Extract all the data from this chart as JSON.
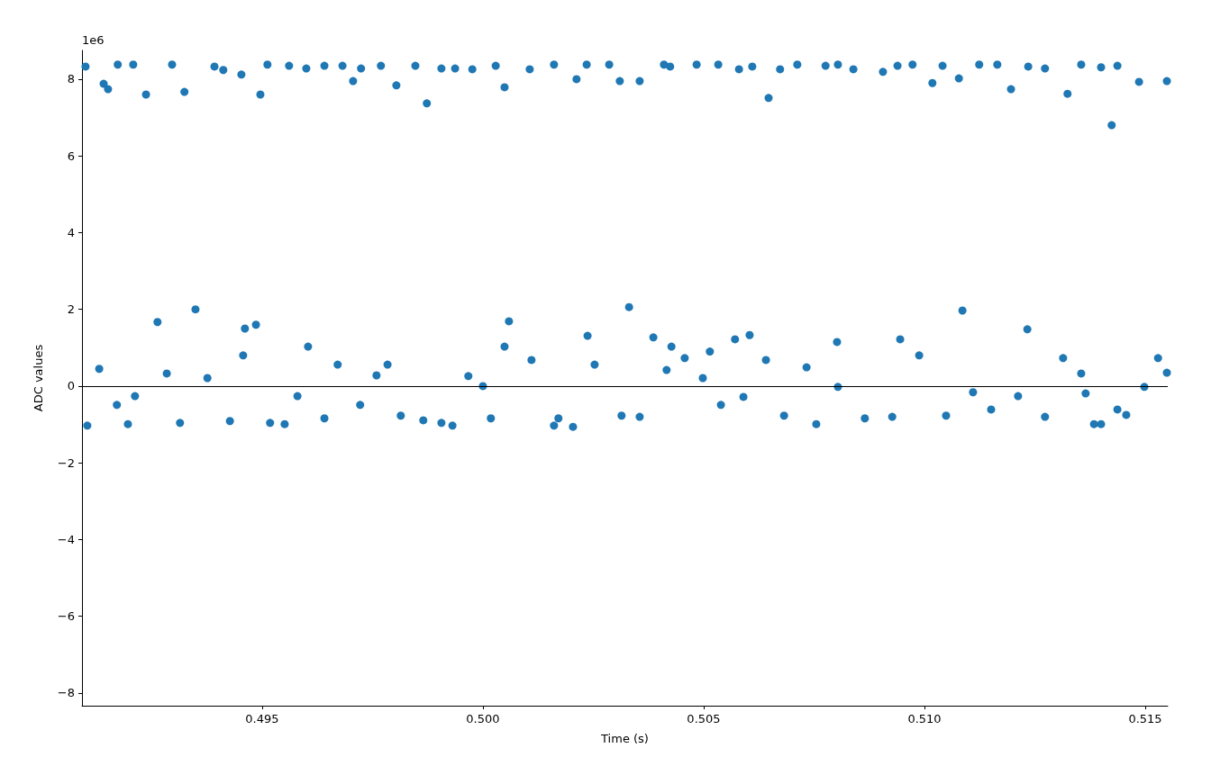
{
  "chart_data": {
    "type": "scatter",
    "xlabel": "Time (s)",
    "ylabel": "ADC values",
    "annotations": [
      "1e6"
    ],
    "xlim": [
      0.49092,
      0.51551
    ],
    "ylim": [
      -8.33,
      8.75
    ],
    "xticks": [
      0.495,
      {
        "value": 0.5,
        "label": "0.500"
      },
      {
        "value": 0.505,
        "label": "0.505"
      },
      {
        "value": 0.51,
        "label": "0.510"
      },
      {
        "value": 0.515,
        "label": "0.515"
      }
    ],
    "yticks": [
      {
        "value": -8,
        "label": "−8"
      },
      {
        "value": -6,
        "label": "−6"
      },
      {
        "value": -4,
        "label": "−4"
      },
      {
        "value": -2,
        "label": "−2"
      },
      0,
      2,
      4,
      6,
      8
    ],
    "grid": false,
    "marker": "circle",
    "ref_lines": [
      {
        "axis": "y",
        "value": 0,
        "color": "#000000"
      }
    ],
    "series": [
      {
        "color": "#1f77b4",
        "x": [
          0.491,
          0.49173,
          0.49141,
          0.49151,
          0.49208,
          0.49237,
          0.49296,
          0.49324,
          0.49392,
          0.49412,
          0.49453,
          0.49496,
          0.49512,
          0.49561,
          0.496,
          0.49641,
          0.49682,
          0.49706,
          0.49724,
          0.49769,
          0.49804,
          0.49847,
          0.49873,
          0.49906,
          0.49937,
          0.49976,
          0.50029,
          0.50049,
          0.50106,
          0.50161,
          0.50212,
          0.50235,
          0.50286,
          0.5031,
          0.50355,
          0.5041,
          0.50424,
          0.50484,
          0.50533,
          0.5058,
          0.5061,
          0.50647,
          0.50673,
          0.50712,
          0.50776,
          0.50804,
          0.50839,
          0.50906,
          0.50939,
          0.50973,
          0.51018,
          0.51041,
          0.51078,
          0.51124,
          0.51165,
          0.51196,
          0.51235,
          0.51273,
          0.51324,
          0.51355,
          0.514,
          0.51424,
          0.51437,
          0.51486,
          0.51549,
          0.49104,
          0.49196,
          0.49263,
          0.49349,
          0.49461,
          0.49486,
          0.49551,
          0.49604,
          0.49759,
          0.49931,
          0.5,
          0.50059,
          0.50161,
          0.50204,
          0.50237,
          0.50331,
          0.50386,
          0.50427,
          0.50514,
          0.50571,
          0.50604,
          0.50755,
          0.50802,
          0.50945,
          0.51086,
          0.51233,
          0.51365,
          0.51384,
          0.514,
          0.51457,
          0.51549,
          0.49131,
          0.49171,
          0.49212,
          0.49284,
          0.49314,
          0.49376,
          0.49427,
          0.49457,
          0.49518,
          0.4958,
          0.49641,
          0.49671,
          0.49722,
          0.49784,
          0.49814,
          0.49865,
          0.49906,
          0.49967,
          0.50018,
          0.50049,
          0.5011,
          0.50171,
          0.50253,
          0.50314,
          0.50355,
          0.50416,
          0.50457,
          0.50498,
          0.50539,
          0.5059,
          0.50641,
          0.50682,
          0.50733,
          0.50804,
          0.50865,
          0.50927,
          0.50988,
          0.51049,
          0.5111,
          0.51151,
          0.51212,
          0.51273,
          0.51314,
          0.51355,
          0.51437,
          0.51498,
          0.51529
        ],
        "values": [
          8.33,
          8.38,
          7.88,
          7.74,
          8.38,
          7.6,
          8.38,
          7.67,
          8.33,
          8.24,
          8.12,
          7.6,
          8.38,
          8.35,
          8.28,
          8.35,
          8.35,
          7.95,
          8.28,
          8.35,
          7.84,
          8.35,
          7.37,
          8.28,
          8.28,
          8.26,
          8.35,
          7.79,
          8.26,
          8.38,
          8,
          8.38,
          8.38,
          7.95,
          7.95,
          8.38,
          8.33,
          8.38,
          8.38,
          8.26,
          8.33,
          7.51,
          8.26,
          8.38,
          8.35,
          8.38,
          8.26,
          8.19,
          8.35,
          8.38,
          7.9,
          8.35,
          8.02,
          8.38,
          8.38,
          7.74,
          8.33,
          8.28,
          7.62,
          8.38,
          8.31,
          6.8,
          8.35,
          7.93,
          7.95,
          -1.03,
          -0.99,
          1.67,
          2,
          1.5,
          1.6,
          -0.99,
          1.03,
          0.28,
          -1.03,
          0,
          1.69,
          -1.03,
          -1.06,
          1.31,
          2.06,
          1.27,
          1.03,
          0.9,
          1.22,
          1.33,
          -0.99,
          1.15,
          1.22,
          1.97,
          1.48,
          -0.19,
          -0.99,
          -0.99,
          -0.75,
          0.35,
          0.45,
          -0.49,
          -0.26,
          0.33,
          -0.96,
          0.21,
          -0.91,
          0.8,
          -0.96,
          -0.26,
          -0.84,
          0.56,
          -0.49,
          0.56,
          -0.77,
          -0.89,
          -0.96,
          0.26,
          -0.84,
          1.03,
          0.68,
          -0.84,
          0.56,
          -0.77,
          -0.8,
          0.42,
          0.73,
          0.21,
          -0.49,
          -0.28,
          0.68,
          -0.77,
          0.49,
          -0.02,
          -0.84,
          -0.8,
          0.8,
          -0.77,
          -0.16,
          -0.61,
          -0.26,
          -0.8,
          0.73,
          0.33,
          -0.61,
          -0.02,
          0.73
        ]
      }
    ]
  }
}
